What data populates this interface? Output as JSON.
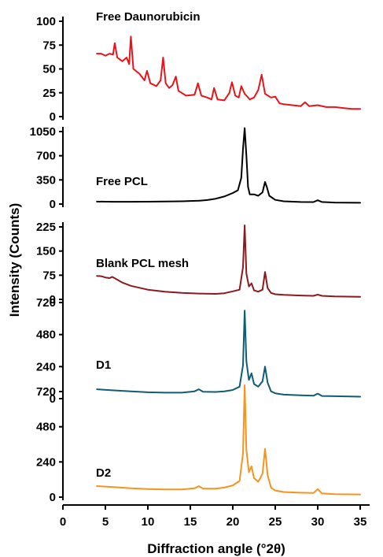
{
  "chart_data": {
    "type": "line",
    "title": "",
    "xlabel": "Diffraction angle (°2θ)",
    "ylabel": "Intensity (Counts)",
    "xlim": [
      0,
      35
    ],
    "x_ticks": [
      "0",
      "5",
      "10",
      "15",
      "20",
      "25",
      "30",
      "35"
    ],
    "grid": false,
    "legend": "none",
    "panels": [
      {
        "label": "Free Daunorubicin",
        "color": "#e8141a",
        "ylim": [
          0,
          100
        ],
        "y_ticks": [
          "0",
          "25",
          "50",
          "75",
          "100"
        ],
        "x": [
          4,
          4.5,
          5,
          5.5,
          5.9,
          6.1,
          6.4,
          7,
          7.5,
          7.8,
          8,
          8.3,
          9,
          9.6,
          9.9,
          10.3,
          11,
          11.5,
          11.8,
          12.1,
          12.5,
          12.9,
          13.3,
          13.6,
          14.5,
          15.5,
          15.9,
          16.3,
          17,
          17.5,
          17.8,
          18.2,
          19,
          19.6,
          19.9,
          20.3,
          20.7,
          21,
          21.4,
          22,
          22.5,
          23,
          23.4,
          23.8,
          24.5,
          25,
          25.5,
          26,
          27,
          28,
          28.5,
          29,
          30,
          31,
          32,
          33,
          34,
          35
        ],
        "y": [
          66,
          66,
          64,
          66,
          65,
          77,
          62,
          58,
          62,
          55,
          84,
          50,
          45,
          38,
          48,
          35,
          32,
          38,
          62,
          35,
          30,
          33,
          42,
          27,
          22,
          23,
          35,
          22,
          20,
          18,
          30,
          18,
          17,
          25,
          36,
          22,
          20,
          32,
          24,
          18,
          20,
          28,
          44,
          24,
          20,
          21,
          14,
          13,
          12,
          11,
          15,
          11,
          12,
          10,
          10,
          9,
          8,
          8
        ]
      },
      {
        "label": "Free PCL",
        "color": "#000000",
        "ylim": [
          0,
          1050
        ],
        "y_ticks": [
          "0",
          "350",
          "700",
          "1050"
        ],
        "x": [
          4,
          6,
          8,
          10,
          12,
          14,
          16,
          17,
          18,
          19,
          20,
          20.6,
          21,
          21.2,
          21.4,
          21.6,
          21.8,
          22,
          22.5,
          23,
          23.5,
          23.8,
          24,
          24.3,
          25,
          26,
          28,
          29.5,
          30,
          30.5,
          32,
          35
        ],
        "y": [
          35,
          33,
          33,
          34,
          36,
          40,
          48,
          58,
          78,
          110,
          160,
          200,
          380,
          800,
          1100,
          700,
          250,
          140,
          140,
          120,
          170,
          320,
          250,
          120,
          60,
          40,
          30,
          28,
          55,
          30,
          22,
          18
        ]
      },
      {
        "label": "Blank PCL mesh",
        "color": "#8b1a1f",
        "ylim": [
          0,
          225
        ],
        "y_ticks": [
          "0",
          "75",
          "150",
          "225"
        ],
        "x": [
          4,
          4.5,
          5,
          5.5,
          5.8,
          6.2,
          7,
          8,
          10,
          12,
          14,
          16,
          18,
          19,
          20,
          20.8,
          21.2,
          21.4,
          21.6,
          21.9,
          22.2,
          22.5,
          23,
          23.5,
          23.8,
          24.1,
          24.5,
          25,
          26,
          28,
          29.5,
          30,
          30.5,
          32,
          35
        ],
        "y": [
          73,
          72,
          68,
          66,
          70,
          64,
          52,
          42,
          30,
          24,
          20,
          18,
          17,
          19,
          25,
          30,
          100,
          230,
          80,
          40,
          50,
          28,
          24,
          30,
          85,
          35,
          20,
          16,
          14,
          12,
          11,
          15,
          11,
          9,
          8
        ]
      },
      {
        "label": "D1",
        "color": "#0f5d73",
        "ylim": [
          0,
          720
        ],
        "y_ticks": [
          "0",
          "240",
          "480",
          "720"
        ],
        "x": [
          4,
          6,
          8,
          10,
          12,
          14,
          15.5,
          16,
          16.5,
          18,
          19,
          20,
          20.8,
          21.2,
          21.4,
          21.6,
          21.9,
          22.2,
          22.5,
          23,
          23.5,
          23.8,
          24.1,
          24.5,
          25,
          26,
          28,
          29.5,
          30,
          30.5,
          32,
          35
        ],
        "y": [
          70,
          62,
          55,
          48,
          45,
          45,
          55,
          70,
          52,
          50,
          55,
          65,
          90,
          250,
          660,
          280,
          140,
          190,
          110,
          90,
          130,
          240,
          120,
          55,
          40,
          30,
          25,
          22,
          38,
          20,
          18,
          15
        ]
      },
      {
        "label": "D2",
        "color": "#f7931e",
        "ylim": [
          0,
          720
        ],
        "y_ticks": [
          "0",
          "240",
          "480",
          "720"
        ],
        "x": [
          4,
          6,
          8,
          10,
          12,
          14,
          15.5,
          16,
          16.5,
          18,
          19,
          20,
          20.8,
          21.2,
          21.4,
          21.6,
          21.9,
          22.2,
          22.5,
          23,
          23.5,
          23.8,
          24.1,
          24.5,
          25,
          26,
          28,
          29.5,
          30,
          30.5,
          32,
          35
        ],
        "y": [
          75,
          68,
          60,
          55,
          52,
          52,
          60,
          75,
          58,
          58,
          65,
          80,
          110,
          300,
          820,
          320,
          170,
          210,
          130,
          105,
          160,
          330,
          150,
          65,
          45,
          35,
          30,
          28,
          55,
          25,
          20,
          18
        ]
      }
    ]
  }
}
